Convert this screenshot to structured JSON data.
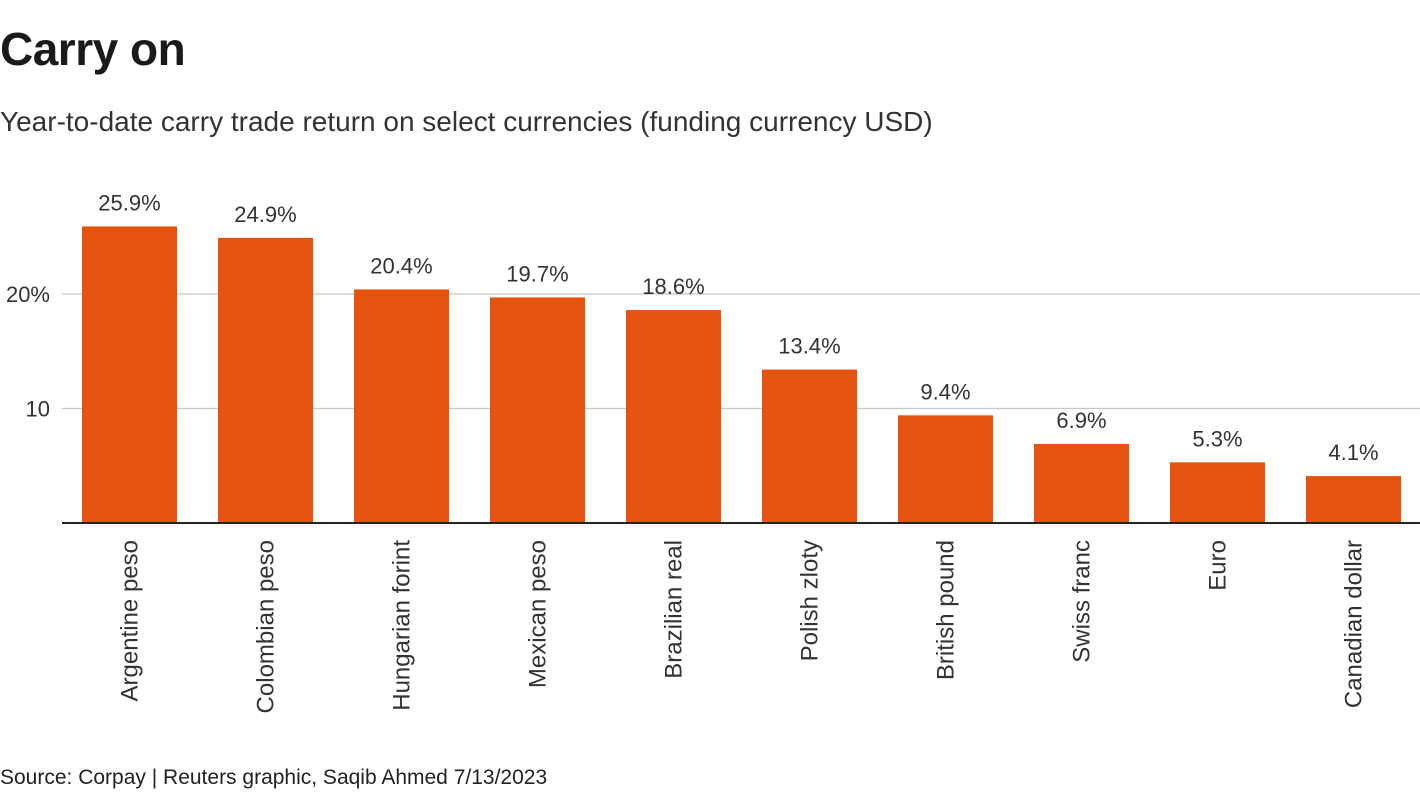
{
  "header": {
    "title": "Carry on",
    "subtitle": "Year-to-date carry trade return on select currencies (funding currency USD)"
  },
  "footer": {
    "source": "Source: Corpay | Reuters graphic, Saqib Ahmed 7/13/2023"
  },
  "colors": {
    "bar": "#e5540f",
    "grid": "#c8c8c8",
    "axis": "#222222"
  },
  "chart_data": {
    "type": "bar",
    "title": "Carry on",
    "subtitle": "Year-to-date carry trade return on select currencies (funding currency USD)",
    "categories": [
      "Argentine peso",
      "Colombian peso",
      "Hungarian forint",
      "Mexican peso",
      "Brazilian real",
      "Polish zloty",
      "British pound",
      "Swiss franc",
      "Euro",
      "Canadian dollar"
    ],
    "values": [
      25.9,
      24.9,
      20.4,
      19.7,
      18.6,
      13.4,
      9.4,
      6.9,
      5.3,
      4.1
    ],
    "data_labels": [
      "25.9%",
      "24.9%",
      "20.4%",
      "19.7%",
      "18.6%",
      "13.4%",
      "9.4%",
      "6.9%",
      "5.3%",
      "4.1%"
    ],
    "yticks": [
      10,
      20
    ],
    "ytick_labels": [
      "10",
      "20%"
    ],
    "ylim": [
      0,
      25.9
    ],
    "grid": true,
    "xlabel": "",
    "ylabel": ""
  }
}
